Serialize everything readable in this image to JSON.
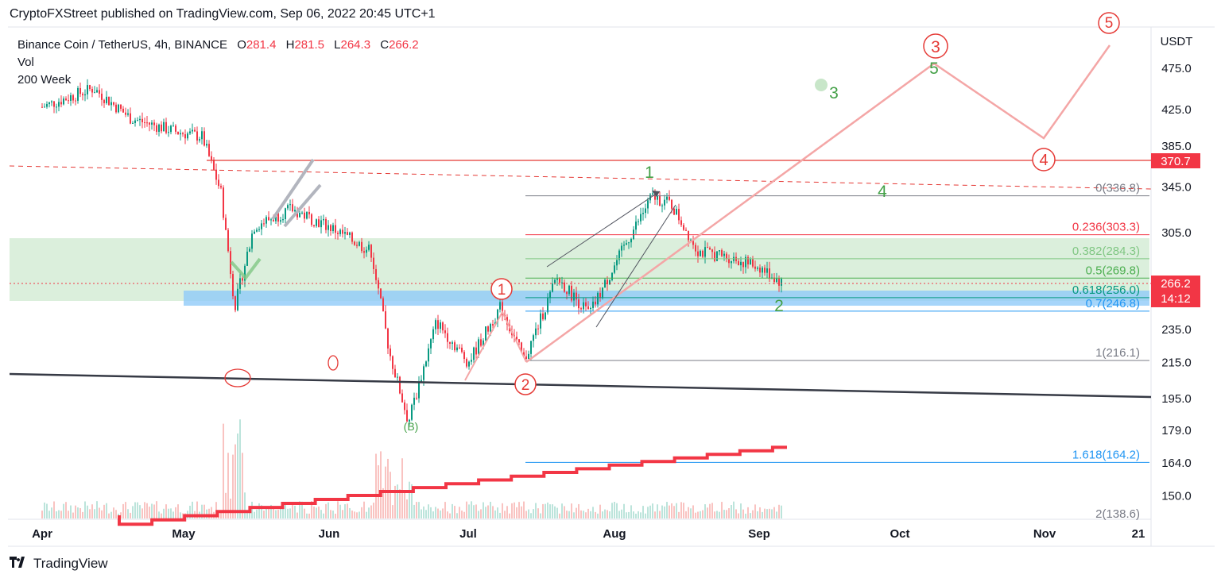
{
  "header": {
    "publisher": "CryptoFXStreet",
    "text": "CryptoFXStreet published on TradingView.com, Sep 06, 2022 20:45 UTC+1"
  },
  "legend": {
    "symbol": "Binance Coin / TetherUS, 4h, BINANCE",
    "open_label": "O",
    "open": "281.4",
    "high_label": "H",
    "high": "281.5",
    "low_label": "L",
    "low": "264.3",
    "close_label": "C",
    "close": "266.2",
    "indicator_1": "Vol",
    "indicator_2": "200 Week"
  },
  "footer": {
    "brand": "TradingView"
  },
  "chart_data": {
    "type": "candlestick",
    "title": "Binance Coin / TetherUS, 4h, BINANCE",
    "currency_label": "USDT",
    "y_ticks": [
      "475.0",
      "425.0",
      "385.0",
      "345.0",
      "305.0",
      "235.0",
      "215.0",
      "195.0",
      "179.0",
      "164.0",
      "150.0"
    ],
    "y_scale": "log",
    "x_ticks": [
      "Apr",
      "May",
      "Jun",
      "Jul",
      "Aug",
      "Sep",
      "Oct",
      "Nov",
      "21"
    ],
    "price_tags": {
      "level": "370.7",
      "last_price": "266.2",
      "countdown": "14:12"
    },
    "fib_levels": [
      {
        "label": "0(336.8)",
        "ratio": "0",
        "price": 336.8
      },
      {
        "label": "0.236(303.3)",
        "ratio": "0.236",
        "price": 303.3
      },
      {
        "label": "0.382(284.3)",
        "ratio": "0.382",
        "price": 284.3
      },
      {
        "label": "0.5(269.8)",
        "ratio": "0.5",
        "price": 269.8
      },
      {
        "label": "0.618(256.0)",
        "ratio": "0.618",
        "price": 256.0
      },
      {
        "label": "0.7(246.8)",
        "ratio": "0.7",
        "price": 246.8
      },
      {
        "label": "1(216.1)",
        "ratio": "1",
        "price": 216.1
      },
      {
        "label": "1.618(164.2)",
        "ratio": "1.618",
        "price": 164.2
      },
      {
        "label": "2(138.6)",
        "ratio": "2",
        "price": 138.6
      }
    ],
    "wave_labels_red": [
      "1",
      "2",
      "3",
      "4",
      "5"
    ],
    "wave_labels_green": [
      "1",
      "2",
      "3",
      "4",
      "5"
    ],
    "correction_label": "(B)",
    "price_series": [
      {
        "date": "Apr 1",
        "price": 428
      },
      {
        "date": "Apr 12",
        "price": 450
      },
      {
        "date": "Apr 20",
        "price": 415
      },
      {
        "date": "Apr 30",
        "price": 400
      },
      {
        "date": "May 5",
        "price": 395
      },
      {
        "date": "May 9",
        "price": 340
      },
      {
        "date": "May 12",
        "price": 250
      },
      {
        "date": "May 16",
        "price": 310
      },
      {
        "date": "May 24",
        "price": 325
      },
      {
        "date": "Jun 1",
        "price": 310
      },
      {
        "date": "Jun 10",
        "price": 290
      },
      {
        "date": "Jun 14",
        "price": 220
      },
      {
        "date": "Jun 18",
        "price": 183
      },
      {
        "date": "Jun 24",
        "price": 240
      },
      {
        "date": "Jul 1",
        "price": 215
      },
      {
        "date": "Jul 8",
        "price": 250
      },
      {
        "date": "Jul 13",
        "price": 216
      },
      {
        "date": "Jul 20",
        "price": 270
      },
      {
        "date": "Jul 27",
        "price": 245
      },
      {
        "date": "Aug 4",
        "price": 300
      },
      {
        "date": "Aug 9",
        "price": 336
      },
      {
        "date": "Aug 13",
        "price": 330
      },
      {
        "date": "Aug 19",
        "price": 290
      },
      {
        "date": "Aug 26",
        "price": 285
      },
      {
        "date": "Sep 1",
        "price": 278
      },
      {
        "date": "Sep 6",
        "price": 266.2
      }
    ]
  }
}
